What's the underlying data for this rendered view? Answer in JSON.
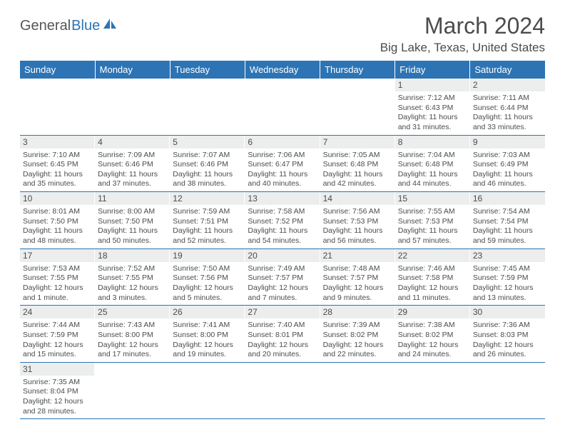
{
  "logo": {
    "text1": "General",
    "text2": "Blue"
  },
  "title": "March 2024",
  "location": "Big Lake, Texas, United States",
  "colors": {
    "header_bg": "#2d74b5",
    "header_text": "#ffffff",
    "daynum_bg": "#eceded",
    "text": "#4a4c4d",
    "row_border": "#2d74b5",
    "logo_gray": "#545658",
    "logo_blue": "#2d74b5"
  },
  "weekdays": [
    "Sunday",
    "Monday",
    "Tuesday",
    "Wednesday",
    "Thursday",
    "Friday",
    "Saturday"
  ],
  "weeks": [
    [
      null,
      null,
      null,
      null,
      null,
      {
        "n": "1",
        "sr": "7:12 AM",
        "ss": "6:43 PM",
        "dl": "11 hours and 31 minutes."
      },
      {
        "n": "2",
        "sr": "7:11 AM",
        "ss": "6:44 PM",
        "dl": "11 hours and 33 minutes."
      }
    ],
    [
      {
        "n": "3",
        "sr": "7:10 AM",
        "ss": "6:45 PM",
        "dl": "11 hours and 35 minutes."
      },
      {
        "n": "4",
        "sr": "7:09 AM",
        "ss": "6:46 PM",
        "dl": "11 hours and 37 minutes."
      },
      {
        "n": "5",
        "sr": "7:07 AM",
        "ss": "6:46 PM",
        "dl": "11 hours and 38 minutes."
      },
      {
        "n": "6",
        "sr": "7:06 AM",
        "ss": "6:47 PM",
        "dl": "11 hours and 40 minutes."
      },
      {
        "n": "7",
        "sr": "7:05 AM",
        "ss": "6:48 PM",
        "dl": "11 hours and 42 minutes."
      },
      {
        "n": "8",
        "sr": "7:04 AM",
        "ss": "6:48 PM",
        "dl": "11 hours and 44 minutes."
      },
      {
        "n": "9",
        "sr": "7:03 AM",
        "ss": "6:49 PM",
        "dl": "11 hours and 46 minutes."
      }
    ],
    [
      {
        "n": "10",
        "sr": "8:01 AM",
        "ss": "7:50 PM",
        "dl": "11 hours and 48 minutes."
      },
      {
        "n": "11",
        "sr": "8:00 AM",
        "ss": "7:50 PM",
        "dl": "11 hours and 50 minutes."
      },
      {
        "n": "12",
        "sr": "7:59 AM",
        "ss": "7:51 PM",
        "dl": "11 hours and 52 minutes."
      },
      {
        "n": "13",
        "sr": "7:58 AM",
        "ss": "7:52 PM",
        "dl": "11 hours and 54 minutes."
      },
      {
        "n": "14",
        "sr": "7:56 AM",
        "ss": "7:53 PM",
        "dl": "11 hours and 56 minutes."
      },
      {
        "n": "15",
        "sr": "7:55 AM",
        "ss": "7:53 PM",
        "dl": "11 hours and 57 minutes."
      },
      {
        "n": "16",
        "sr": "7:54 AM",
        "ss": "7:54 PM",
        "dl": "11 hours and 59 minutes."
      }
    ],
    [
      {
        "n": "17",
        "sr": "7:53 AM",
        "ss": "7:55 PM",
        "dl": "12 hours and 1 minute."
      },
      {
        "n": "18",
        "sr": "7:52 AM",
        "ss": "7:55 PM",
        "dl": "12 hours and 3 minutes."
      },
      {
        "n": "19",
        "sr": "7:50 AM",
        "ss": "7:56 PM",
        "dl": "12 hours and 5 minutes."
      },
      {
        "n": "20",
        "sr": "7:49 AM",
        "ss": "7:57 PM",
        "dl": "12 hours and 7 minutes."
      },
      {
        "n": "21",
        "sr": "7:48 AM",
        "ss": "7:57 PM",
        "dl": "12 hours and 9 minutes."
      },
      {
        "n": "22",
        "sr": "7:46 AM",
        "ss": "7:58 PM",
        "dl": "12 hours and 11 minutes."
      },
      {
        "n": "23",
        "sr": "7:45 AM",
        "ss": "7:59 PM",
        "dl": "12 hours and 13 minutes."
      }
    ],
    [
      {
        "n": "24",
        "sr": "7:44 AM",
        "ss": "7:59 PM",
        "dl": "12 hours and 15 minutes."
      },
      {
        "n": "25",
        "sr": "7:43 AM",
        "ss": "8:00 PM",
        "dl": "12 hours and 17 minutes."
      },
      {
        "n": "26",
        "sr": "7:41 AM",
        "ss": "8:00 PM",
        "dl": "12 hours and 19 minutes."
      },
      {
        "n": "27",
        "sr": "7:40 AM",
        "ss": "8:01 PM",
        "dl": "12 hours and 20 minutes."
      },
      {
        "n": "28",
        "sr": "7:39 AM",
        "ss": "8:02 PM",
        "dl": "12 hours and 22 minutes."
      },
      {
        "n": "29",
        "sr": "7:38 AM",
        "ss": "8:02 PM",
        "dl": "12 hours and 24 minutes."
      },
      {
        "n": "30",
        "sr": "7:36 AM",
        "ss": "8:03 PM",
        "dl": "12 hours and 26 minutes."
      }
    ],
    [
      {
        "n": "31",
        "sr": "7:35 AM",
        "ss": "8:04 PM",
        "dl": "12 hours and 28 minutes."
      },
      null,
      null,
      null,
      null,
      null,
      null
    ]
  ],
  "labels": {
    "sunrise": "Sunrise:",
    "sunset": "Sunset:",
    "daylight": "Daylight:"
  }
}
